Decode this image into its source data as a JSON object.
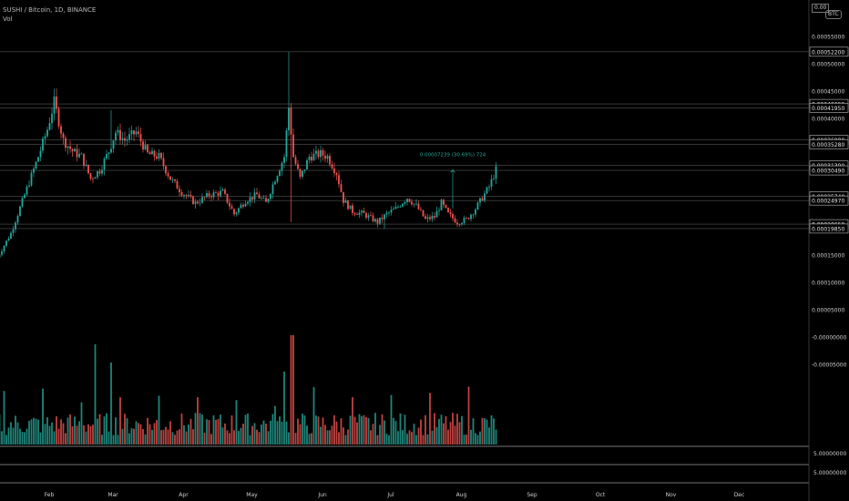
{
  "header": {
    "title": "SUSHI / Bitcoin, 1D, BINANCE",
    "volume_label": "Vol",
    "currency_badge": "BTC",
    "price_badge": "0.00"
  },
  "colors": {
    "background": "#000000",
    "up": "#26a69a",
    "down": "#ef5350",
    "axis_text": "#cfcfcf",
    "level_line": "#555555",
    "measure": "#26a69a"
  },
  "chart_data": {
    "type": "candlestick",
    "x_axis": {
      "tick_labels": [
        "Feb",
        "Mar",
        "Apr",
        "May",
        "Jun",
        "Jul",
        "Aug",
        "Sep",
        "Oct",
        "Nov",
        "Dec"
      ],
      "data_range": [
        "2021-01-10",
        "2021-08-17"
      ]
    },
    "price_axis": {
      "tick_labels": [
        "0.00055000",
        "0.00050000",
        "0.00045000",
        "0.00040000",
        "0.00035000",
        "0.00030000",
        "0.00025000",
        "0.00020000",
        "0.00015000",
        "0.00010000",
        "0.00005000",
        "-0.00000000",
        "-0.00005000"
      ],
      "boxed_levels": [
        "0.00052200",
        "0.00042650",
        "0.00041950",
        "0.00036080",
        "0.00035280",
        "0.00031390",
        "0.00030490",
        "0.00025740",
        "0.00024970",
        "0.00020650",
        "0.00019850"
      ],
      "ylim": [
        -5e-05,
        0.00057
      ]
    },
    "lower_axis": {
      "tick_labels": [
        "5.00000000",
        "5.00000000"
      ]
    },
    "measure_annotation": {
      "text": "0.00007239 (30.69%) 724",
      "from_date": "2021-07-29",
      "from_price": 0.000235,
      "to_price": 0.000306
    },
    "volume": {
      "series_name": "Vol",
      "scale_max": 0.00011
    }
  }
}
